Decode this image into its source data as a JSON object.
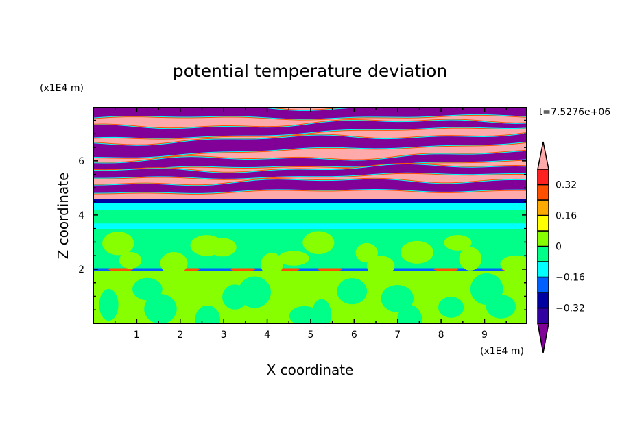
{
  "chart_data": {
    "type": "heatmap",
    "title": "potential temperature deviation",
    "xlabel": "X coordinate",
    "ylabel": "Z coordinate",
    "x_unit": "(x1E4 m)",
    "y_unit": "(x1E4 m)",
    "time_label": "t=7.5276e+06",
    "xlim": [
      0,
      9.97
    ],
    "ylim": [
      0,
      7.97
    ],
    "xticks": [
      "1",
      "2",
      "3",
      "4",
      "5",
      "6",
      "7",
      "8",
      "9"
    ],
    "yticks": [
      "2",
      "4",
      "6"
    ],
    "grid": false,
    "colorbar": {
      "levels": [
        -0.4,
        -0.32,
        -0.24,
        -0.16,
        -0.08,
        0,
        0.08,
        0.16,
        0.24,
        0.32,
        0.4
      ],
      "labels": [
        "0.32",
        "0.16",
        "0",
        "-0.16",
        "-0.32"
      ],
      "label_values": [
        0.32,
        0.16,
        0,
        -0.16,
        -0.32
      ],
      "colors": [
        "#800098",
        "#3000a0",
        "#0000a0",
        "#0060ff",
        "#00ffff",
        "#00ff88",
        "#88ff00",
        "#ffff00",
        "#ffaa00",
        "#ff5000",
        "#ff2020",
        "#ffaaaa"
      ],
      "extend": "both",
      "placement": "right"
    },
    "layers": [
      {
        "z": [
          0,
          1.95
        ],
        "value": 0.04,
        "blob_value": -0.04
      },
      {
        "z": [
          1.95,
          2.05
        ],
        "value": -0.2,
        "note_value": 0.28
      },
      {
        "z": [
          2.05,
          3.5
        ],
        "value": -0.04,
        "blob_value": 0.04
      },
      {
        "z": [
          3.5,
          3.7
        ],
        "value": -0.12
      },
      {
        "z": [
          3.7,
          4.2
        ],
        "value": -0.04
      },
      {
        "z": [
          4.2,
          4.45
        ],
        "value": -0.12
      },
      {
        "z": [
          4.45,
          4.6
        ],
        "value": -0.3
      },
      {
        "z": [
          4.6,
          7.97
        ],
        "value": 0.45
      }
    ],
    "cold_stripes": [
      {
        "z_left": [
          7.6,
          7.97
        ],
        "z_right": [
          7.65,
          7.97
        ],
        "value": -0.45
      },
      {
        "z_left": [
          6.8,
          7.2
        ],
        "z_right": [
          7.3,
          7.5
        ],
        "value": -0.45
      },
      {
        "z_left": [
          6.15,
          6.65
        ],
        "z_right": [
          6.7,
          7.0
        ],
        "value": -0.45
      },
      {
        "z_left": [
          5.65,
          5.95
        ],
        "z_right": [
          6.0,
          6.25
        ],
        "value": -0.45
      },
      {
        "z_left": [
          5.35,
          5.6
        ],
        "z_right": [
          5.55,
          5.8
        ],
        "value": -0.45
      },
      {
        "z_left": [
          4.85,
          5.15
        ],
        "z_right": [
          4.95,
          5.3
        ],
        "value": -0.45
      }
    ]
  }
}
